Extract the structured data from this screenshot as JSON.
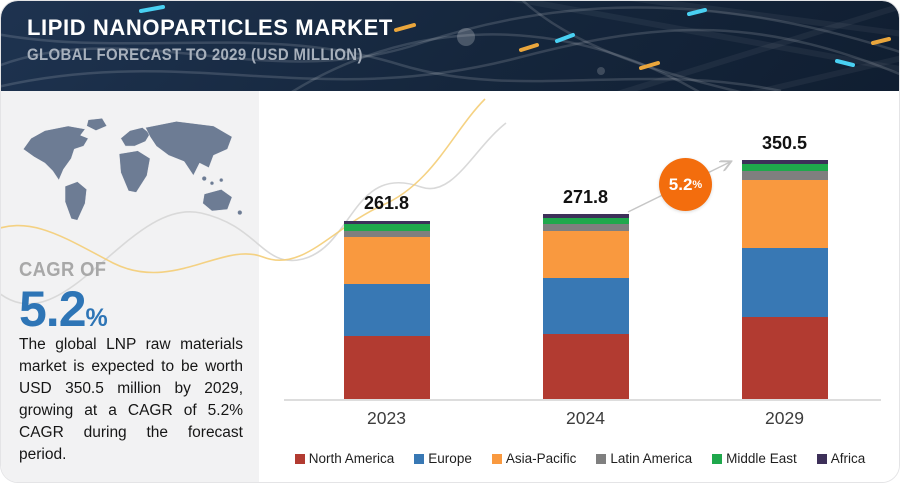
{
  "header": {
    "title": "LIPID NANOPARTICLES MARKET",
    "subtitle": "GLOBAL FORECAST TO 2029 (USD MILLION)"
  },
  "sidebar": {
    "cagr_label": "CAGR OF",
    "cagr_value": "5.2",
    "cagr_percent": "%",
    "description": "The global LNP raw materials market is expected to be worth USD 350.5 million by 2029, growing at a CAGR of 5.2% CAGR during the forecast period."
  },
  "chart_data": {
    "type": "bar",
    "stacked": true,
    "title": "Lipid Nanoparticles Market, Global Forecast to 2029 (USD Million)",
    "categories": [
      "2023",
      "2024",
      "2029"
    ],
    "totals": [
      261.8,
      271.8,
      350.5
    ],
    "series": [
      {
        "name": "North America",
        "color": "#b23b31",
        "values": [
          92.0,
          95.0,
          120.0
        ]
      },
      {
        "name": "Europe",
        "color": "#3878b4",
        "values": [
          76.0,
          82.0,
          101.0
        ]
      },
      {
        "name": "Asia-Pacific",
        "color": "#f9993f",
        "values": [
          69.0,
          70.0,
          100.0
        ]
      },
      {
        "name": "Latin America",
        "color": "#7f7f7f",
        "values": [
          10.0,
          9.0,
          13.0
        ]
      },
      {
        "name": "Middle East",
        "color": "#1fa84c",
        "values": [
          9.5,
          10.0,
          10.0
        ]
      },
      {
        "name": "Africa",
        "color": "#3d3059",
        "values": [
          5.3,
          5.8,
          6.5
        ]
      }
    ],
    "annotation": {
      "value": "5.2",
      "suffix": "%",
      "color": "#f36d0d"
    },
    "xlabel": "",
    "ylabel": "",
    "ylim": [
      0,
      360
    ],
    "grid": false,
    "legend_position": "bottom"
  }
}
